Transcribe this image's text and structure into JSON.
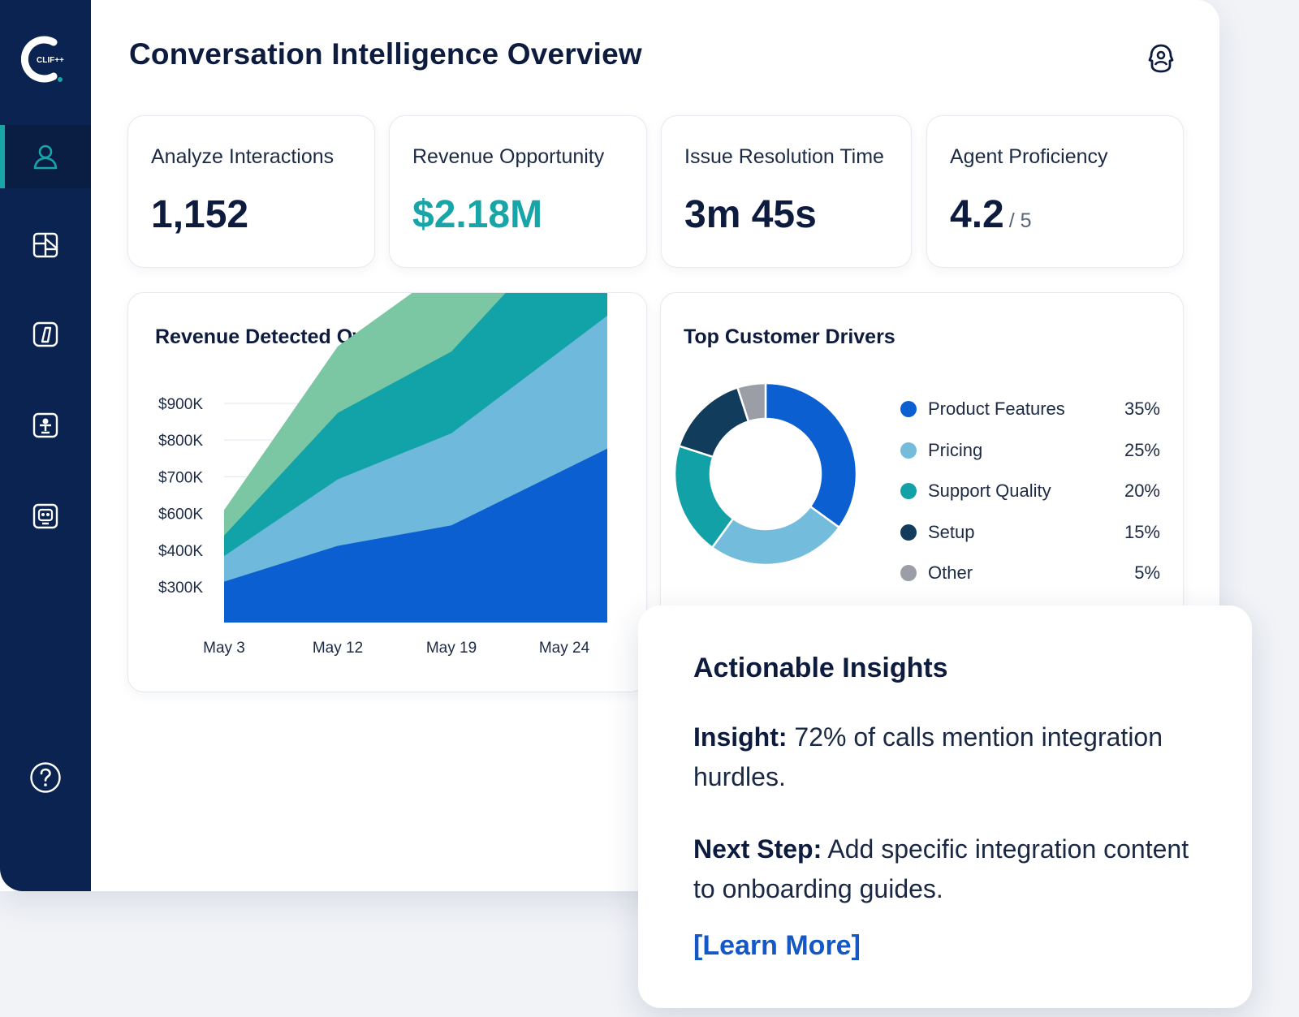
{
  "app": {
    "logo_text": "CLIF++",
    "title": "Conversation Intelligence Overview"
  },
  "sidebar": {
    "items": [
      {
        "icon": "user-icon",
        "active": true
      },
      {
        "icon": "dashboard-icon",
        "active": false
      },
      {
        "icon": "document-icon",
        "active": false
      },
      {
        "icon": "agent-icon",
        "active": false
      },
      {
        "icon": "robot-icon",
        "active": false
      }
    ],
    "help_icon": "help-icon"
  },
  "kpis": [
    {
      "label": "Analyze Interactions",
      "value": "1,152",
      "suffix": ""
    },
    {
      "label": "Revenue Opportunity",
      "value": "$2.18M",
      "suffix": "",
      "color": "#17a5a8"
    },
    {
      "label": "Issue Resolution Time",
      "value": "3m 45s",
      "suffix": ""
    },
    {
      "label": "Agent Proficiency",
      "value": "4.2",
      "suffix": "/ 5"
    }
  ],
  "revenue_panel": {
    "title": "Revenue Detected Over Time"
  },
  "drivers_panel": {
    "title": "Top Customer Drivers"
  },
  "chart_data": [
    {
      "type": "area",
      "title": "Revenue Detected Over Time",
      "y_tick_labels": [
        "$900K",
        "$800K",
        "$700K",
        "$600K",
        "$400K",
        "$300K"
      ],
      "x_tick_labels": [
        "May 3",
        "May 12",
        "May 19",
        "May 24"
      ],
      "stacked": true,
      "x": [
        0,
        1,
        2,
        3
      ],
      "series": [
        {
          "color": "#0b5fd1",
          "values": [
            40,
            75,
            95,
            170
          ]
        },
        {
          "color": "#6fb9dc",
          "values": [
            25,
            65,
            90,
            130
          ]
        },
        {
          "color": "#11a3a8",
          "values": [
            20,
            65,
            80,
            130
          ]
        },
        {
          "color": "#7bc7a3",
          "values": [
            25,
            65,
            85,
            120
          ]
        }
      ],
      "grid": true
    },
    {
      "type": "pie",
      "title": "Top Customer Drivers",
      "donut": true,
      "slices": [
        {
          "label": "Product Features",
          "value": 35,
          "display": "35%",
          "color": "#0b5fd1"
        },
        {
          "label": "Pricing",
          "value": 25,
          "display": "25%",
          "color": "#74bcdc"
        },
        {
          "label": "Support Quality",
          "value": 20,
          "display": "20%",
          "color": "#13a1a8"
        },
        {
          "label": "Setup",
          "value": 15,
          "display": "15%",
          "color": "#123c5c"
        },
        {
          "label": "Other",
          "value": 5,
          "display": "5%",
          "color": "#9b9ea6"
        }
      ],
      "legend": "right"
    }
  ],
  "insights": {
    "title": "Actionable Insights",
    "insight_label": "Insight:",
    "insight_text": "72% of calls mention integration hurdles.",
    "next_label": "Next Step:",
    "next_text": "Add specific integration content to onboarding guides.",
    "link": "[Learn More]"
  }
}
